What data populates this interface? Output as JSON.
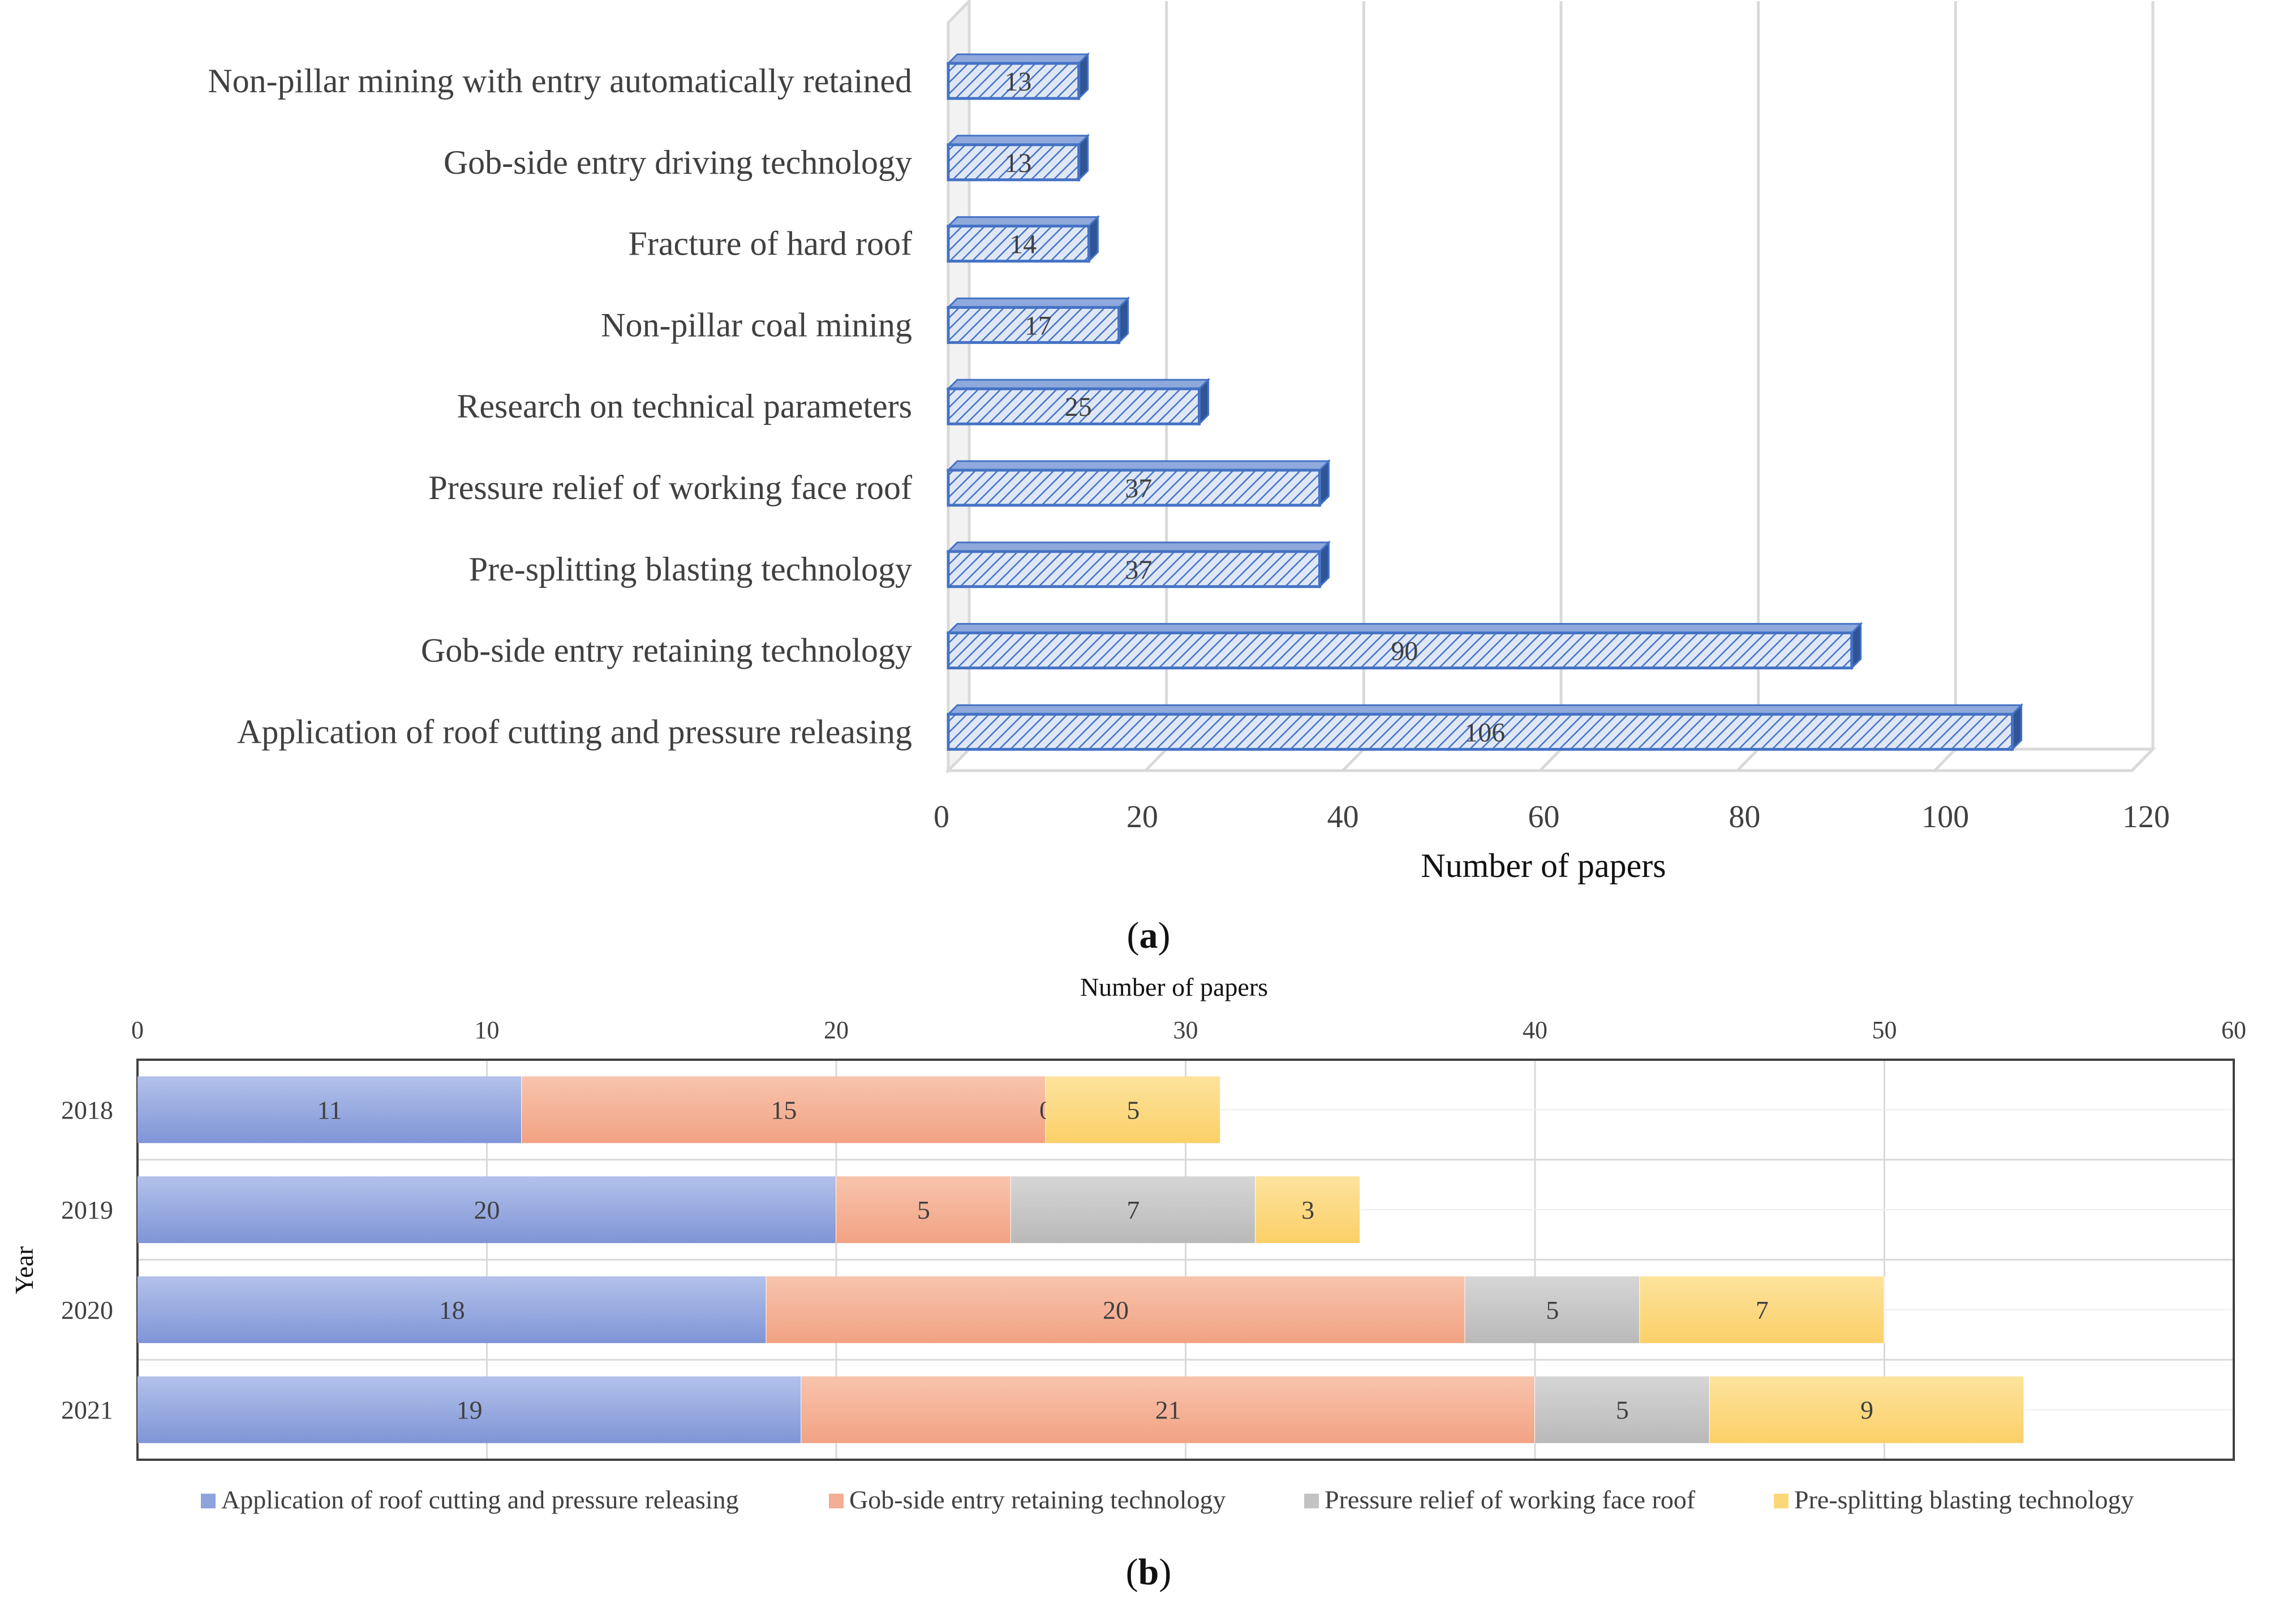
{
  "chart_data": [
    {
      "type": "bar",
      "orientation": "horizontal",
      "panel_label": "a",
      "categories": [
        "Non-pillar mining with entry automatically retained",
        "Gob-side entry driving technology",
        "Fracture of hard roof",
        "Non-pillar coal mining",
        "Research on technical parameters",
        "Pressure relief of working face roof",
        "Pre-splitting blasting technology",
        "Gob-side entry retaining technology",
        "Application of roof cutting and pressure releasing"
      ],
      "values": [
        13,
        13,
        14,
        17,
        25,
        37,
        37,
        90,
        106
      ],
      "xlabel": "Number of papers",
      "xlim": [
        0,
        120
      ],
      "xticks": [
        0,
        20,
        40,
        60,
        80,
        100,
        120
      ],
      "grid": true,
      "color": "#4472C4"
    },
    {
      "type": "bar",
      "orientation": "horizontal",
      "stacked": true,
      "panel_label": "b",
      "categories": [
        "2018",
        "2019",
        "2020",
        "2021"
      ],
      "series": [
        {
          "name": "Application of roof cutting and pressure releasing",
          "values": [
            11,
            20,
            18,
            19
          ],
          "labels": [
            "11",
            "20",
            "18",
            "19"
          ],
          "color": "#8EA2DC"
        },
        {
          "name": "Gob-side entry retaining technology",
          "values": [
            15,
            5,
            20,
            21
          ],
          "labels": [
            "15",
            "5",
            "20",
            "21"
          ],
          "color": "#F4AE93"
        },
        {
          "name": "Pressure relief of working face roof",
          "values": [
            0,
            7,
            5,
            5
          ],
          "labels": [
            "0",
            "7",
            "5",
            "5"
          ],
          "color": "#C3C3C3"
        },
        {
          "name": "Pre-splitting blasting technology",
          "values": [
            5,
            3,
            7,
            9
          ],
          "labels": [
            "5",
            "3",
            "7",
            "9"
          ],
          "color": "#FCD77A"
        }
      ],
      "xlabel": "Number of papers",
      "ylabel": "Year",
      "xlim": [
        0,
        60
      ],
      "xticks": [
        0,
        10,
        20,
        30,
        40,
        50,
        60
      ],
      "axis_position": "top",
      "legend": "bottom",
      "grid": true
    }
  ]
}
